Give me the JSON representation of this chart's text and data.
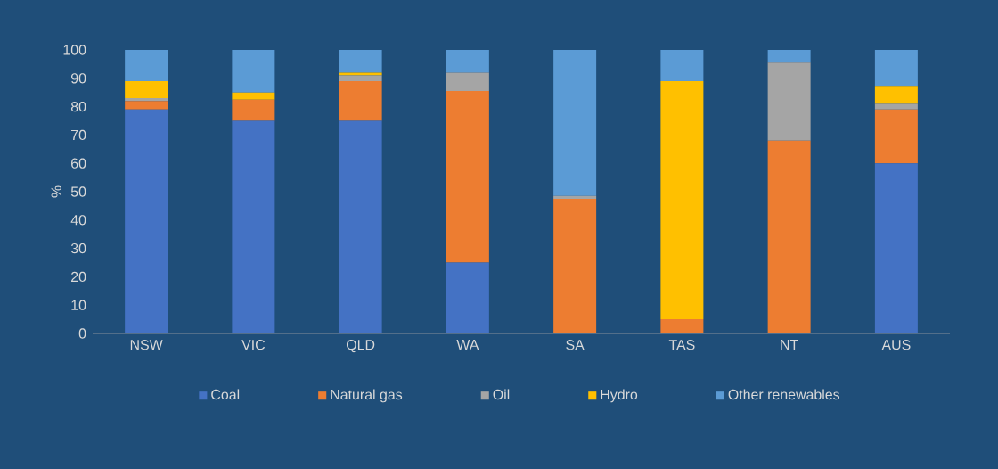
{
  "chart_data": {
    "type": "bar",
    "stacked": true,
    "ylabel": "%",
    "categories": [
      "NSW",
      "VIC",
      "QLD",
      "WA",
      "SA",
      "TAS",
      "NT",
      "AUS"
    ],
    "series": [
      {
        "name": "Coal",
        "color": "#4472c4",
        "values": [
          79,
          75,
          75,
          25,
          0,
          0,
          0,
          60
        ]
      },
      {
        "name": "Natural gas",
        "color": "#ed7d31",
        "values": [
          3,
          7.5,
          14,
          60.5,
          47.5,
          5,
          68,
          19
        ]
      },
      {
        "name": "Oil",
        "color": "#a5a5a5",
        "values": [
          1,
          0,
          2,
          6.5,
          1,
          0,
          27.5,
          2
        ]
      },
      {
        "name": "Hydro",
        "color": "#ffc000",
        "values": [
          6,
          2.5,
          1,
          0,
          0,
          84,
          0,
          6
        ]
      },
      {
        "name": "Other renewables",
        "color": "#5b9bd5",
        "values": [
          11,
          15,
          8,
          8,
          51.5,
          11,
          4.5,
          13
        ]
      }
    ],
    "ylim": [
      0,
      100
    ],
    "yticks": [
      0,
      10,
      20,
      30,
      40,
      50,
      60,
      70,
      80,
      90,
      100
    ],
    "legend": "bottom"
  }
}
